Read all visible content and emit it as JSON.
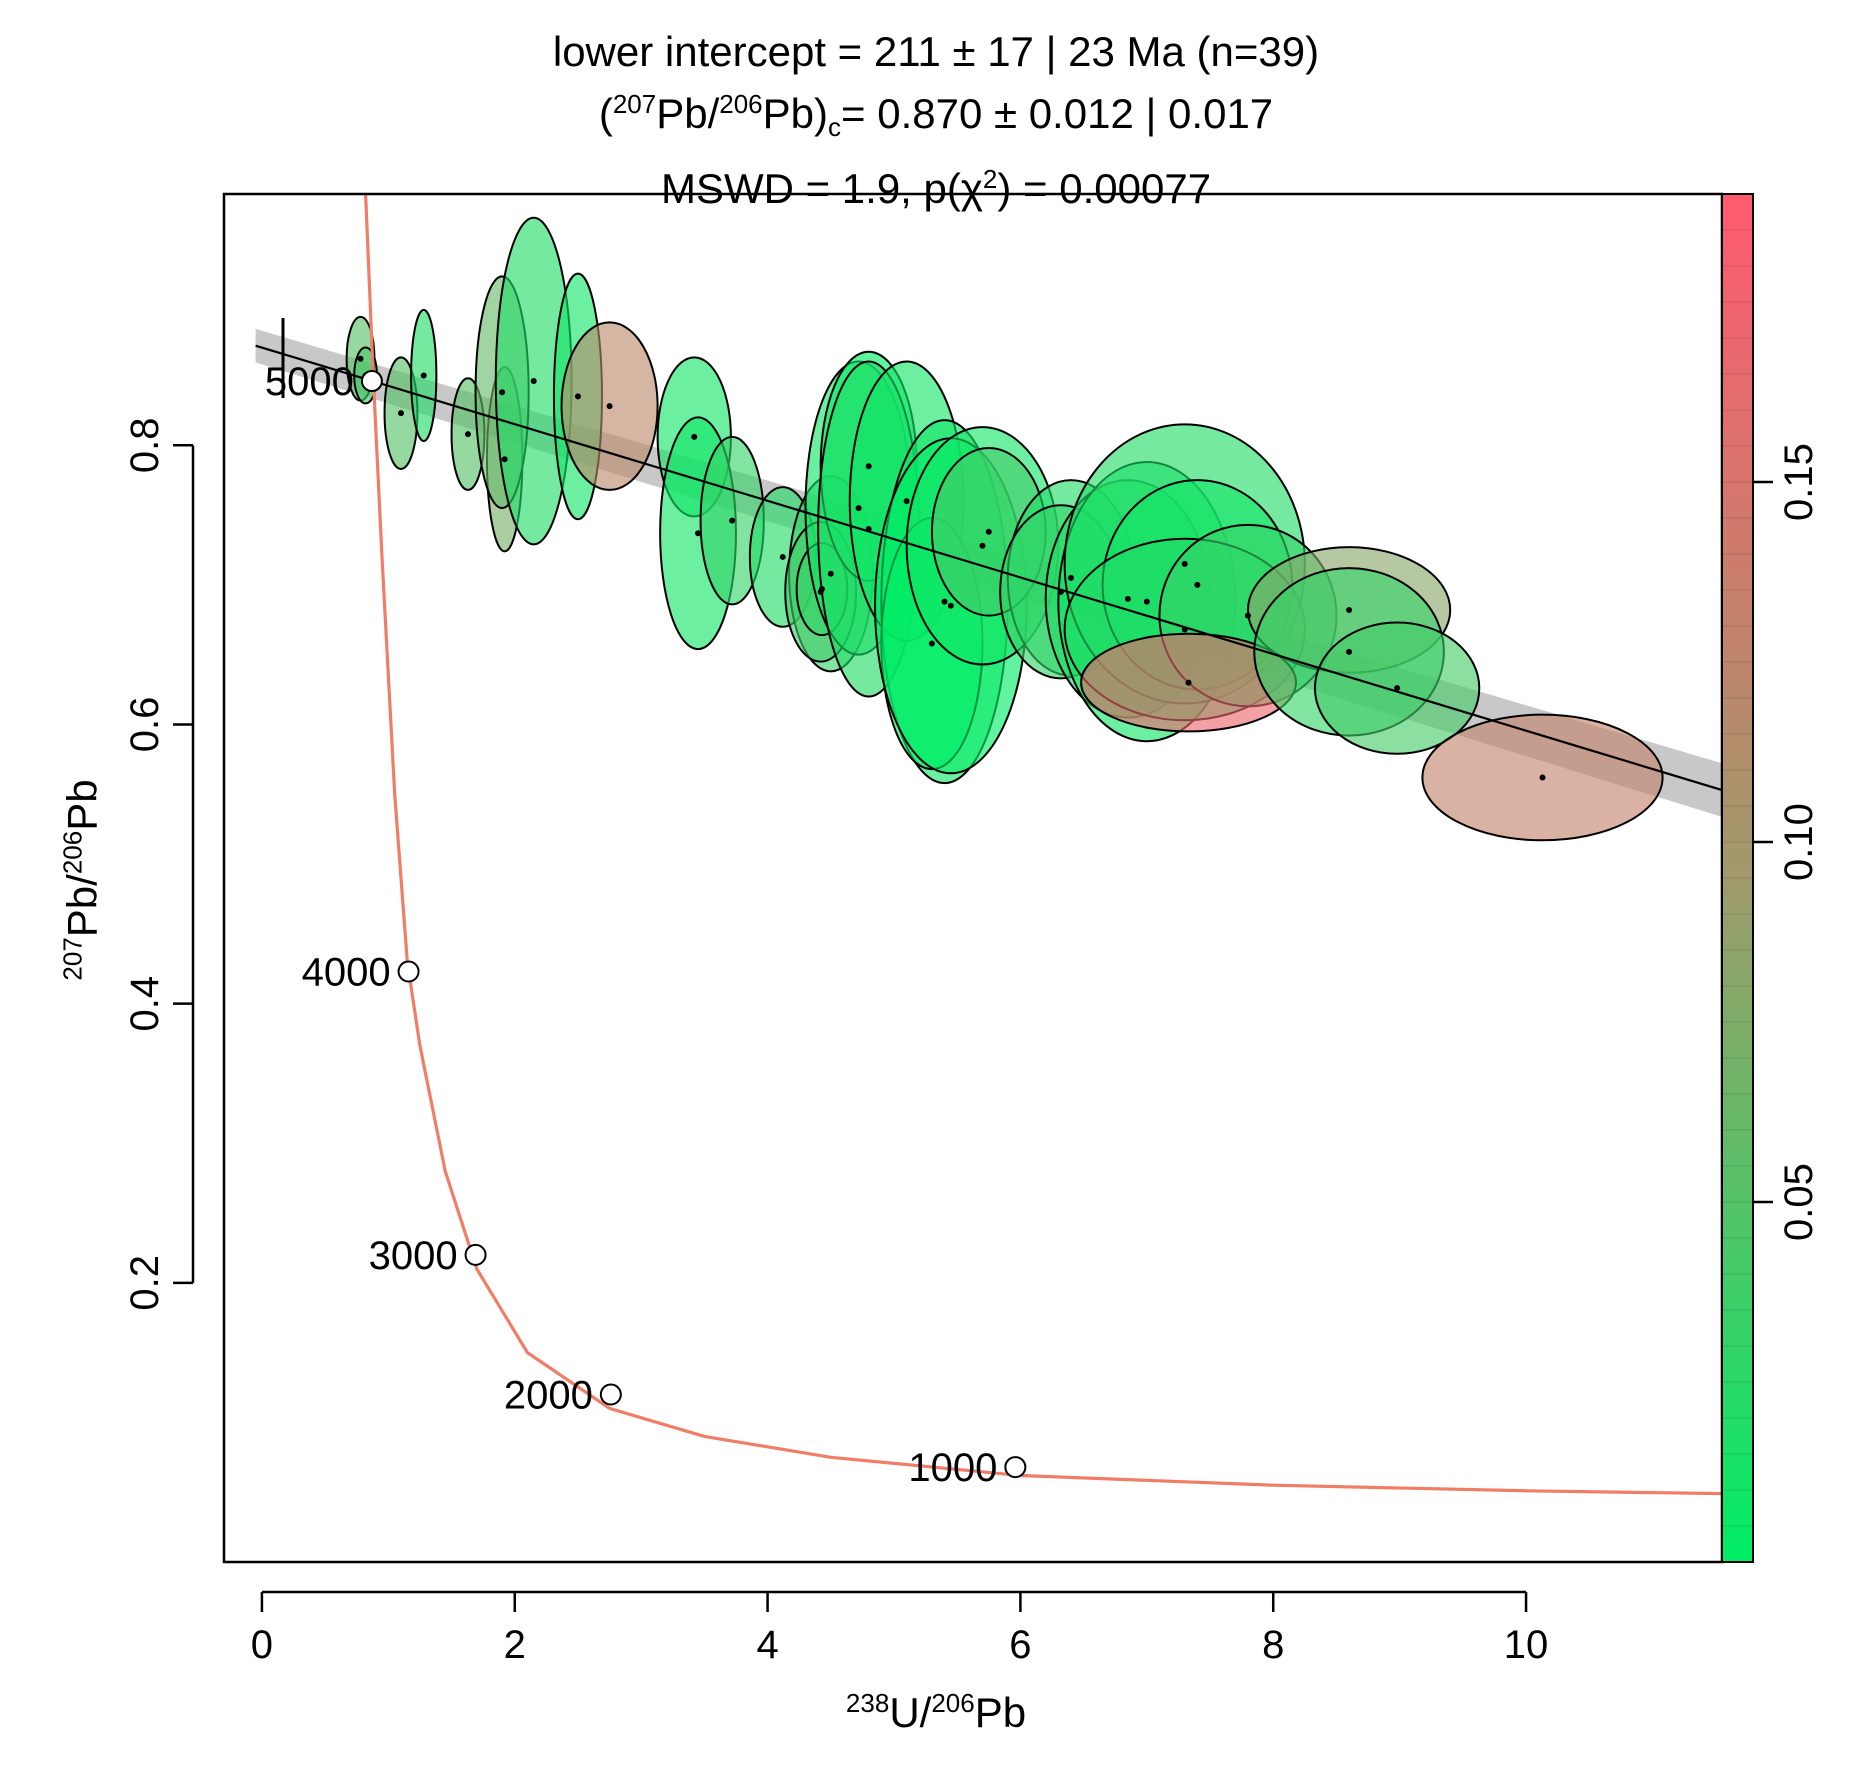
{
  "chart_data": {
    "type": "scatter",
    "subtype": "tera-wasserburg-concordia",
    "title": {
      "line1": "lower intercept = 211 ± 17 | 23 Ma (n=39)",
      "line2_open": "(",
      "line2_sup_a": "207",
      "line2_pb_a": "Pb/",
      "line2_sup_b": "206",
      "line2_pb_b": "Pb)",
      "line2_sub": "c",
      "line2_rest": "= 0.870 ± 0.012 | 0.017",
      "line3_a": "MSWD = 1.9, p(χ",
      "line3_sup": "2",
      "line3_b": ") = 0.00077"
    },
    "xlabel": {
      "sup_a": "238",
      "text_a": "U/",
      "sup_b": "206",
      "text_b": "Pb"
    },
    "ylabel": {
      "sup_a": "207",
      "text_a": "Pb/",
      "sup_b": "206",
      "text_b": "Pb"
    },
    "xlim": [
      -0.3,
      11.55
    ],
    "ylim": [
      0.0,
      0.98
    ],
    "xticks": [
      0,
      2,
      4,
      6,
      8,
      10
    ],
    "yticks": [
      0.2,
      0.4,
      0.6,
      0.8
    ],
    "ytick_labels": [
      "0.2",
      "0.4",
      "0.6",
      "0.8"
    ],
    "colorbar": {
      "range": [
        0.0,
        0.19
      ],
      "ticks": [
        0.05,
        0.1,
        0.15
      ],
      "tick_labels": [
        "0.05",
        "0.10",
        "0.15"
      ],
      "colors": [
        "#00ee66",
        "#a09a6a",
        "#ff5a6e"
      ]
    },
    "concordia": {
      "color": "#f27d67",
      "curve": [
        [
          0.82,
          0.98
        ],
        [
          0.88,
          0.85
        ],
        [
          0.95,
          0.72
        ],
        [
          1.05,
          0.55
        ],
        [
          1.15,
          0.43
        ],
        [
          1.25,
          0.37
        ],
        [
          1.45,
          0.28
        ],
        [
          1.7,
          0.21
        ],
        [
          2.1,
          0.15
        ],
        [
          2.75,
          0.11
        ],
        [
          3.5,
          0.09
        ],
        [
          4.5,
          0.075
        ],
        [
          6.0,
          0.062
        ],
        [
          8.0,
          0.055
        ],
        [
          10.0,
          0.051
        ],
        [
          11.55,
          0.049
        ]
      ],
      "ages": [
        {
          "age": "5000",
          "x": 0.87,
          "y": 0.846
        },
        {
          "age": "4000",
          "x": 1.16,
          "y": 0.423
        },
        {
          "age": "3000",
          "x": 1.69,
          "y": 0.22
        },
        {
          "age": "2000",
          "x": 2.76,
          "y": 0.12
        },
        {
          "age": "1000",
          "x": 5.96,
          "y": 0.068
        }
      ]
    },
    "regression": {
      "intercept_x0": 0.87,
      "x_start": -0.05,
      "x_end": 11.55,
      "y_end": 0.553,
      "band_halfwidth": 0.012
    },
    "ellipses": [
      {
        "x": 0.78,
        "y": 0.862,
        "sx": 0.11,
        "sy": 0.03,
        "c": 0.05
      },
      {
        "x": 0.82,
        "y": 0.85,
        "sx": 0.09,
        "sy": 0.02,
        "c": 0.04
      },
      {
        "x": 1.1,
        "y": 0.823,
        "sx": 0.13,
        "sy": 0.04,
        "c": 0.05
      },
      {
        "x": 1.28,
        "y": 0.85,
        "sx": 0.1,
        "sy": 0.047,
        "c": 0.02
      },
      {
        "x": 1.63,
        "y": 0.808,
        "sx": 0.13,
        "sy": 0.04,
        "c": 0.05
      },
      {
        "x": 1.92,
        "y": 0.79,
        "sx": 0.14,
        "sy": 0.066,
        "c": 0.07
      },
      {
        "x": 1.9,
        "y": 0.838,
        "sx": 0.21,
        "sy": 0.083,
        "c": 0.06
      },
      {
        "x": 2.15,
        "y": 0.846,
        "sx": 0.3,
        "sy": 0.117,
        "c": 0.02
      },
      {
        "x": 2.5,
        "y": 0.835,
        "sx": 0.19,
        "sy": 0.088,
        "c": 0.01
      },
      {
        "x": 2.75,
        "y": 0.828,
        "sx": 0.38,
        "sy": 0.06,
        "c": 0.12
      },
      {
        "x": 3.42,
        "y": 0.806,
        "sx": 0.29,
        "sy": 0.057,
        "c": 0.01
      },
      {
        "x": 3.45,
        "y": 0.737,
        "sx": 0.3,
        "sy": 0.083,
        "c": 0.01
      },
      {
        "x": 3.72,
        "y": 0.746,
        "sx": 0.25,
        "sy": 0.06,
        "c": 0.03
      },
      {
        "x": 4.12,
        "y": 0.72,
        "sx": 0.26,
        "sy": 0.05,
        "c": 0.02
      },
      {
        "x": 4.5,
        "y": 0.708,
        "sx": 0.33,
        "sy": 0.07,
        "c": 0.03
      },
      {
        "x": 4.42,
        "y": 0.695,
        "sx": 0.28,
        "sy": 0.05,
        "c": 0.04
      },
      {
        "x": 4.43,
        "y": 0.697,
        "sx": 0.2,
        "sy": 0.033,
        "c": 0.03
      },
      {
        "x": 4.72,
        "y": 0.755,
        "sx": 0.42,
        "sy": 0.105,
        "c": 0.01
      },
      {
        "x": 4.8,
        "y": 0.785,
        "sx": 0.38,
        "sy": 0.082,
        "c": 0.0
      },
      {
        "x": 4.8,
        "y": 0.74,
        "sx": 0.4,
        "sy": 0.12,
        "c": 0.02
      },
      {
        "x": 5.1,
        "y": 0.76,
        "sx": 0.45,
        "sy": 0.1,
        "c": 0.01
      },
      {
        "x": 5.4,
        "y": 0.688,
        "sx": 0.5,
        "sy": 0.13,
        "c": 0.01
      },
      {
        "x": 5.3,
        "y": 0.658,
        "sx": 0.4,
        "sy": 0.09,
        "c": 0.0
      },
      {
        "x": 5.45,
        "y": 0.685,
        "sx": 0.6,
        "sy": 0.12,
        "c": 0.0
      },
      {
        "x": 5.7,
        "y": 0.728,
        "sx": 0.6,
        "sy": 0.085,
        "c": 0.01
      },
      {
        "x": 5.75,
        "y": 0.738,
        "sx": 0.45,
        "sy": 0.06,
        "c": 0.04
      },
      {
        "x": 6.4,
        "y": 0.705,
        "sx": 0.5,
        "sy": 0.07,
        "c": 0.02
      },
      {
        "x": 6.32,
        "y": 0.695,
        "sx": 0.48,
        "sy": 0.062,
        "c": 0.03
      },
      {
        "x": 6.85,
        "y": 0.69,
        "sx": 0.65,
        "sy": 0.085,
        "c": 0.02
      },
      {
        "x": 7.0,
        "y": 0.688,
        "sx": 0.7,
        "sy": 0.1,
        "c": 0.01
      },
      {
        "x": 7.3,
        "y": 0.715,
        "sx": 0.95,
        "sy": 0.1,
        "c": 0.02
      },
      {
        "x": 7.4,
        "y": 0.7,
        "sx": 0.75,
        "sy": 0.075,
        "c": 0.01
      },
      {
        "x": 7.3,
        "y": 0.668,
        "sx": 0.95,
        "sy": 0.065,
        "c": 0.02
      },
      {
        "x": 7.8,
        "y": 0.678,
        "sx": 0.7,
        "sy": 0.065,
        "c": 0.03
      },
      {
        "x": 7.33,
        "y": 0.63,
        "sx": 0.85,
        "sy": 0.035,
        "c": 0.17
      },
      {
        "x": 8.6,
        "y": 0.682,
        "sx": 0.8,
        "sy": 0.045,
        "c": 0.08
      },
      {
        "x": 8.6,
        "y": 0.652,
        "sx": 0.75,
        "sy": 0.06,
        "c": 0.03
      },
      {
        "x": 8.98,
        "y": 0.626,
        "sx": 0.65,
        "sy": 0.047,
        "c": 0.04
      },
      {
        "x": 10.13,
        "y": 0.562,
        "sx": 0.95,
        "sy": 0.045,
        "c": 0.13
      }
    ]
  }
}
